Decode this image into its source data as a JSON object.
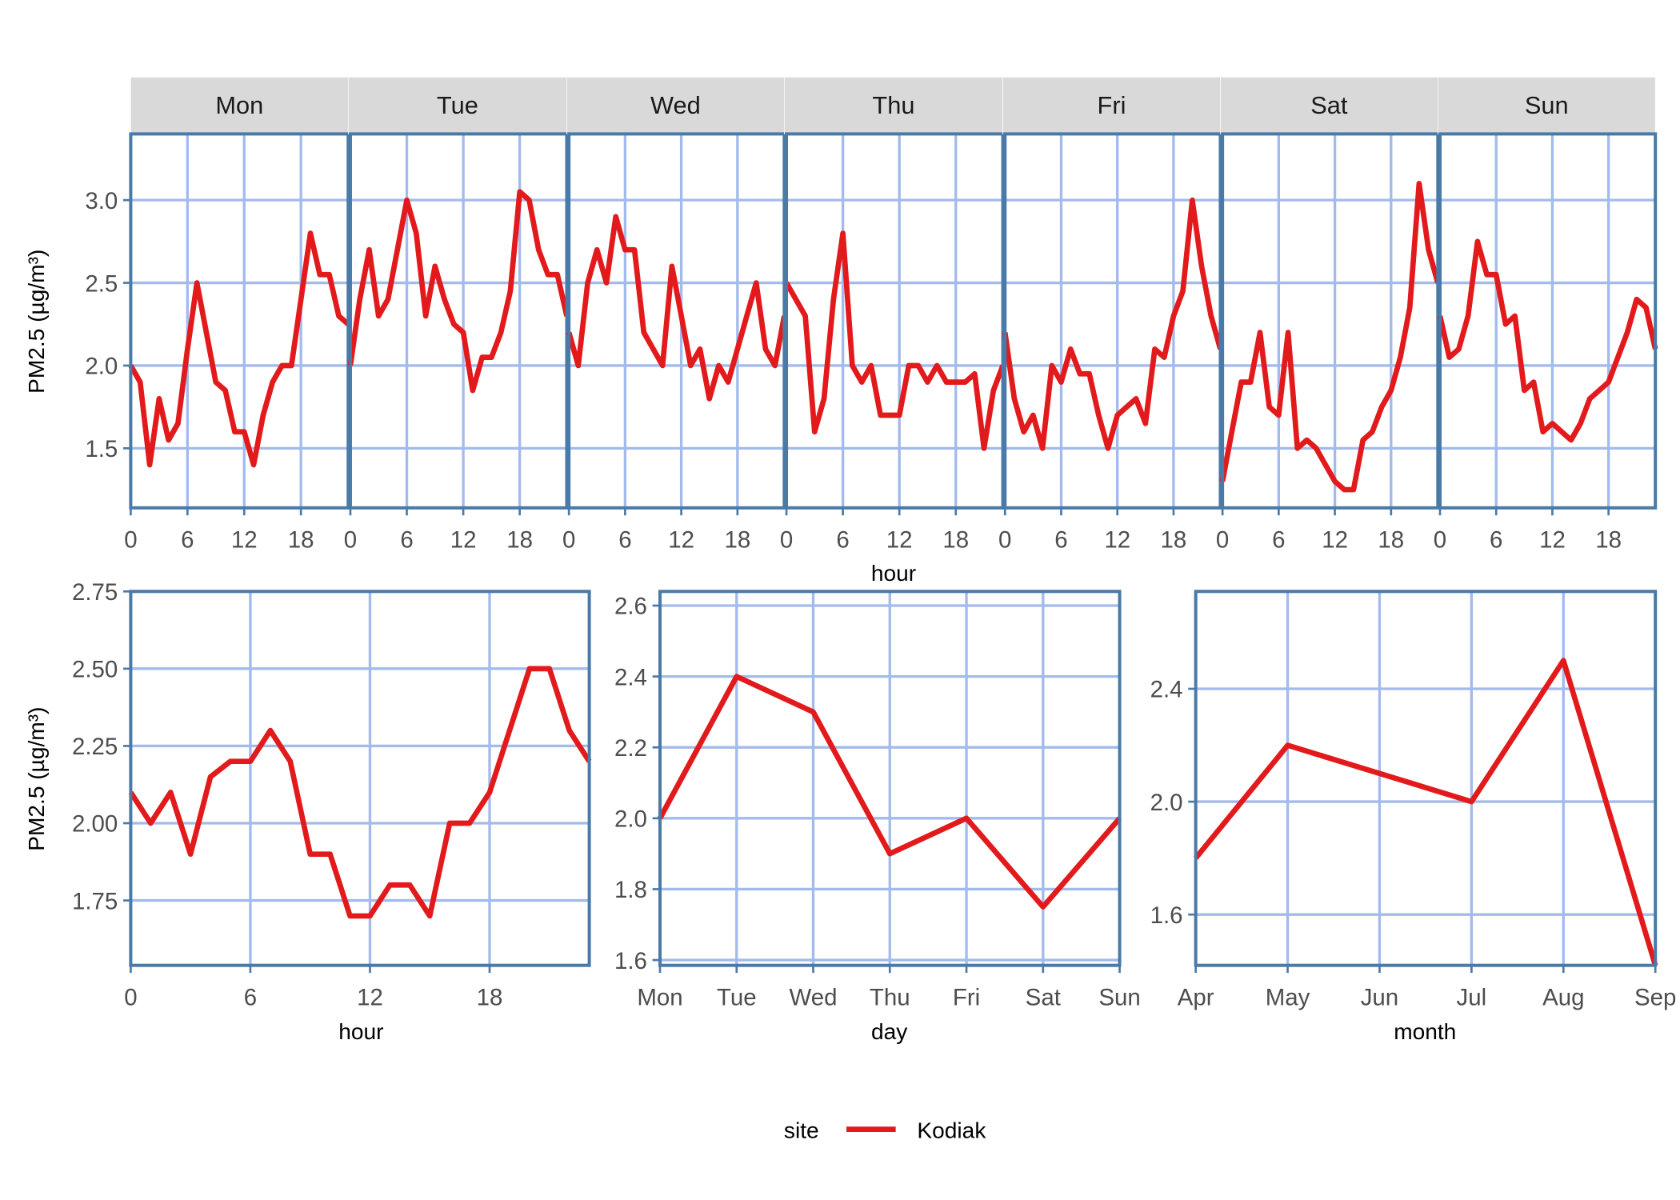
{
  "colors": {
    "line": "#e31a1c",
    "grid": "#a3bbec",
    "border": "#4a7aa8",
    "strip": "#d9d9d9"
  },
  "legend": {
    "title": "site",
    "entries": [
      "Kodiak"
    ],
    "position": "bottom"
  },
  "chart_data": [
    {
      "type": "line",
      "title": "",
      "xlabel": "hour",
      "ylabel": "PM2.5 (µg/m³)",
      "xlim": [
        0,
        23
      ],
      "ylim": [
        1.14,
        3.4
      ],
      "xticks": [
        "0",
        "6",
        "12",
        "18"
      ],
      "xtick_values": [
        0,
        6,
        12,
        18
      ],
      "yticks": [
        "1.5",
        "2.0",
        "2.5",
        "3.0"
      ],
      "ytick_values": [
        1.5,
        2.0,
        2.5,
        3.0
      ],
      "grid": true,
      "series_name": "Kodiak",
      "facets": [
        {
          "label": "Mon",
          "values": [
            2.0,
            1.9,
            1.4,
            1.8,
            1.55,
            1.65,
            2.1,
            2.5,
            2.2,
            1.9,
            1.85,
            1.6,
            1.6,
            1.4,
            1.7,
            1.9,
            2.0,
            2.0,
            2.4,
            2.8,
            2.55,
            2.55,
            2.3,
            2.25
          ]
        },
        {
          "label": "Tue",
          "values": [
            2.0,
            2.4,
            2.7,
            2.3,
            2.4,
            2.7,
            3.0,
            2.8,
            2.3,
            2.6,
            2.4,
            2.25,
            2.2,
            1.85,
            2.05,
            2.05,
            2.2,
            2.45,
            3.05,
            3.0,
            2.7,
            2.55,
            2.55,
            2.3
          ]
        },
        {
          "label": "Wed",
          "values": [
            2.2,
            2.0,
            2.5,
            2.7,
            2.5,
            2.9,
            2.7,
            2.7,
            2.2,
            2.1,
            2.0,
            2.6,
            2.3,
            2.0,
            2.1,
            1.8,
            2.0,
            1.9,
            2.1,
            2.3,
            2.5,
            2.1,
            2.0,
            2.3
          ]
        },
        {
          "label": "Thu",
          "values": [
            2.5,
            2.4,
            2.3,
            1.6,
            1.8,
            2.4,
            2.8,
            2.0,
            1.9,
            2.0,
            1.7,
            1.7,
            1.7,
            2.0,
            2.0,
            1.9,
            2.0,
            1.9,
            1.9,
            1.9,
            1.95,
            1.5,
            1.85,
            2.0
          ]
        },
        {
          "label": "Fri",
          "values": [
            2.2,
            1.8,
            1.6,
            1.7,
            1.5,
            2.0,
            1.9,
            2.1,
            1.95,
            1.95,
            1.7,
            1.5,
            1.7,
            1.75,
            1.8,
            1.65,
            2.1,
            2.05,
            2.3,
            2.45,
            3.0,
            2.6,
            2.3,
            2.1
          ]
        },
        {
          "label": "Sat",
          "values": [
            1.3,
            1.6,
            1.9,
            1.9,
            2.2,
            1.75,
            1.7,
            2.2,
            1.5,
            1.55,
            1.5,
            1.4,
            1.3,
            1.25,
            1.25,
            1.55,
            1.6,
            1.75,
            1.85,
            2.05,
            2.35,
            3.1,
            2.7,
            2.5
          ]
        },
        {
          "label": "Sun",
          "values": [
            2.3,
            2.05,
            2.1,
            2.3,
            2.75,
            2.55,
            2.55,
            2.25,
            2.3,
            1.85,
            1.9,
            1.6,
            1.65,
            1.6,
            1.55,
            1.65,
            1.8,
            1.85,
            1.9,
            2.05,
            2.2,
            2.4,
            2.35,
            2.1
          ]
        }
      ]
    },
    {
      "type": "line",
      "xlabel": "hour",
      "ylabel": "PM2.5 (µg/m³)",
      "xlim": [
        0,
        23
      ],
      "ylim": [
        1.54,
        2.75
      ],
      "xticks": [
        "0",
        "6",
        "12",
        "18"
      ],
      "xtick_values": [
        0,
        6,
        12,
        18
      ],
      "yticks": [
        "1.75",
        "2.00",
        "2.25",
        "2.50",
        "2.75"
      ],
      "ytick_values": [
        1.75,
        2.0,
        2.25,
        2.5,
        2.75
      ],
      "grid": true,
      "series": [
        {
          "name": "Kodiak",
          "x": [
            0,
            1,
            2,
            3,
            4,
            5,
            6,
            7,
            8,
            9,
            10,
            11,
            12,
            13,
            14,
            15,
            16,
            17,
            18,
            19,
            20,
            21,
            22,
            23
          ],
          "values": [
            2.1,
            2.0,
            2.1,
            1.9,
            2.15,
            2.2,
            2.2,
            2.3,
            2.2,
            1.9,
            1.9,
            1.7,
            1.7,
            1.8,
            1.8,
            1.7,
            2.0,
            2.0,
            2.1,
            2.3,
            2.5,
            2.5,
            2.3,
            2.2
          ]
        }
      ]
    },
    {
      "type": "line",
      "xlabel": "day",
      "ylabel": "",
      "categories": [
        "Mon",
        "Tue",
        "Wed",
        "Thu",
        "Fri",
        "Sat",
        "Sun"
      ],
      "ylim": [
        1.585,
        2.64
      ],
      "yticks": [
        "1.6",
        "1.8",
        "2.0",
        "2.2",
        "2.4",
        "2.6"
      ],
      "ytick_values": [
        1.6,
        1.8,
        2.0,
        2.2,
        2.4,
        2.6
      ],
      "grid": true,
      "series": [
        {
          "name": "Kodiak",
          "values": [
            2.0,
            2.4,
            2.3,
            1.9,
            2.0,
            1.75,
            2.0
          ]
        }
      ]
    },
    {
      "type": "line",
      "xlabel": "month",
      "ylabel": "",
      "categories": [
        "Apr",
        "May",
        "Jun",
        "Jul",
        "Aug",
        "Sep"
      ],
      "ylim": [
        1.42,
        2.745
      ],
      "yticks": [
        "1.6",
        "2.0",
        "2.4"
      ],
      "ytick_values": [
        1.6,
        2.0,
        2.4
      ],
      "grid": true,
      "series": [
        {
          "name": "Kodiak",
          "values": [
            1.8,
            2.2,
            2.1,
            2.0,
            2.5,
            1.42
          ]
        }
      ]
    }
  ]
}
